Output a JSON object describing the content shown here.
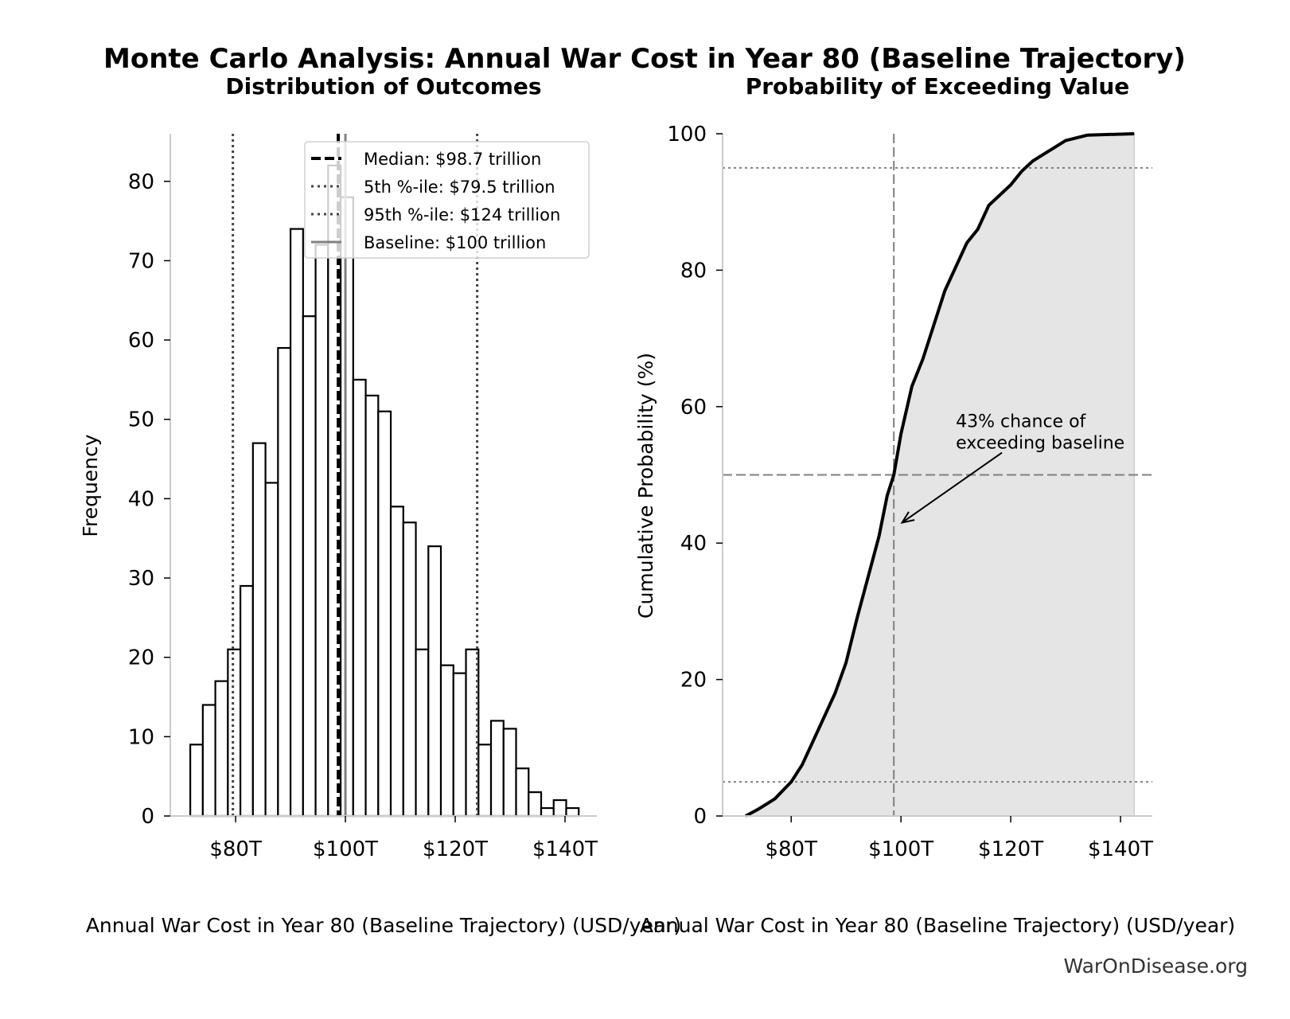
{
  "title": "Monte Carlo Analysis: Annual War Cost in Year 80 (Baseline Trajectory)",
  "watermark": "WarOnDisease.org",
  "colors": {
    "bar_edge": "#000000",
    "bar_fill": "#ffffff",
    "fill_area": "#e5e5e5",
    "ref_line": "#808080",
    "spine": "#cccccc",
    "percentile_line": "#444444"
  },
  "chart_data": [
    {
      "type": "bar",
      "subtitle": "Distribution of Outcomes",
      "xlabel": "Annual War Cost in Year 80 (Baseline Trajectory) (USD/year)",
      "ylabel": "Frequency",
      "xlim": [
        68.1,
        145.8
      ],
      "ylim": [
        0,
        86
      ],
      "xticks": [
        {
          "v": 80,
          "label": "$80T"
        },
        {
          "v": 100,
          "label": "$100T"
        },
        {
          "v": 120,
          "label": "$120T"
        },
        {
          "v": 140,
          "label": "$140T"
        }
      ],
      "yticks": [
        0,
        10,
        20,
        30,
        40,
        50,
        60,
        70,
        80
      ],
      "bin_start": 71.74,
      "bin_end": 142.5,
      "counts": [
        9,
        14,
        17,
        21,
        29,
        47,
        42,
        59,
        74,
        63,
        72,
        82,
        78,
        55,
        53,
        51,
        39,
        37,
        21,
        34,
        19,
        18,
        21,
        9,
        12,
        11,
        6,
        3,
        1,
        2,
        1
      ],
      "reference_lines": [
        {
          "name": "Median: $98.7 trillion",
          "value": 98.7,
          "style": "dashed",
          "color": "#000000"
        },
        {
          "name": "5th %-ile: $79.5 trillion",
          "value": 79.5,
          "style": "dotted",
          "color": "#444444"
        },
        {
          "name": "95th %-ile: $124 trillion",
          "value": 124,
          "style": "dotted",
          "color": "#444444"
        },
        {
          "name": "Baseline: $100 trillion",
          "value": 100,
          "style": "solid",
          "color": "#808080"
        }
      ],
      "legend_placement": "upper-right",
      "grid": false
    },
    {
      "type": "area",
      "subtitle": "Probability of Exceeding Value",
      "xlabel": "Annual War Cost in Year 80 (Baseline Trajectory) (USD/year)",
      "ylabel": "Cumulative Probability (%)",
      "xlim": [
        67.5,
        145.8
      ],
      "ylim": [
        0,
        100
      ],
      "xticks": [
        {
          "v": 80,
          "label": "$80T"
        },
        {
          "v": 100,
          "label": "$100T"
        },
        {
          "v": 120,
          "label": "$120T"
        },
        {
          "v": 140,
          "label": "$140T"
        }
      ],
      "yticks": [
        0,
        20,
        40,
        60,
        80,
        100
      ],
      "x": [
        71.7,
        74,
        77,
        80,
        82,
        84,
        86,
        88,
        90,
        92,
        94,
        96,
        97.5,
        98.7,
        100,
        102,
        104,
        106,
        108,
        110,
        112,
        114,
        116,
        118,
        120,
        122,
        124,
        126,
        128,
        130,
        134,
        142.5
      ],
      "y": [
        0,
        1,
        2.5,
        5,
        7.5,
        11,
        14.5,
        18,
        22.5,
        29,
        35,
        41,
        47,
        50,
        56,
        63,
        67,
        72,
        77,
        80.5,
        84,
        86,
        89.5,
        91,
        92.5,
        94.5,
        96,
        97,
        98,
        99,
        99.8,
        100
      ],
      "hlines": [
        {
          "value": 5,
          "style": "dotted"
        },
        {
          "value": 50,
          "style": "dashed"
        },
        {
          "value": 95,
          "style": "dotted"
        }
      ],
      "vline": {
        "value": 98.7,
        "style": "dashed"
      },
      "annotation": {
        "text_lines": [
          "43% chance of",
          "exceeding baseline"
        ],
        "text_at": [
          110,
          57
        ],
        "arrow_to": [
          100.2,
          43
        ]
      },
      "grid": false
    }
  ]
}
